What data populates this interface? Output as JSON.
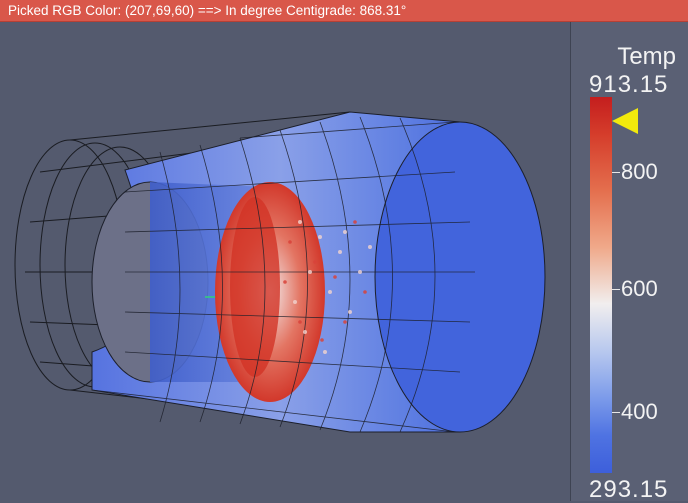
{
  "status_bar": {
    "text": "Picked RGB Color: (207,69,60) ==> In degree Centigrade: 868.31°"
  },
  "legend": {
    "title": "Temp",
    "max_label": "913.15",
    "min_label": "293.15",
    "ticks": [
      "800",
      "600",
      "400"
    ],
    "marker_value": 868.31
  },
  "colors": {
    "status_bar_bg": "#d9574a",
    "viewport_bg": "#545a6e",
    "marker": "#f2ea0c",
    "hot": "#c41e1e",
    "cold": "#3d5fdb"
  }
}
